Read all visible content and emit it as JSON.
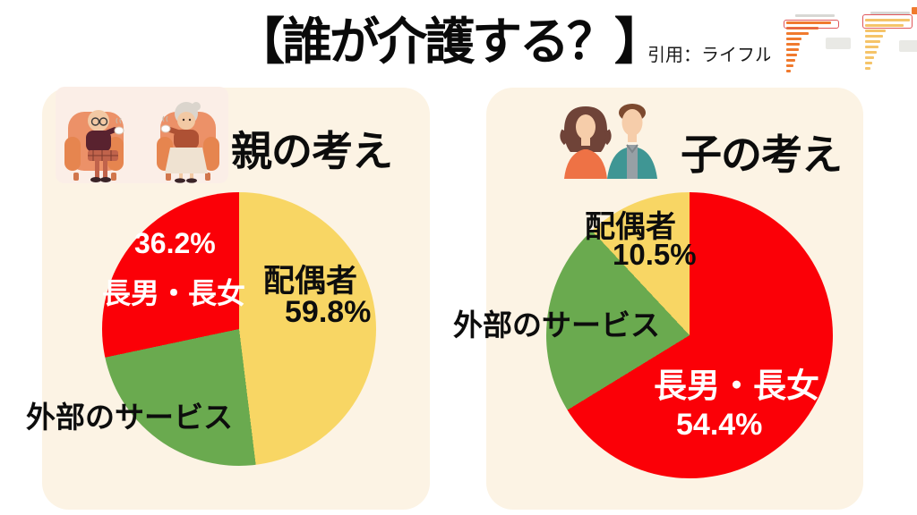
{
  "header": {
    "title": "【誰が介護する？】",
    "citation": "引用：ライフル"
  },
  "thumbnail": {
    "description": "source-bar-charts-thumbnail",
    "bar_color_left": "#f07a2e",
    "bar_color_right": "#f5c469",
    "highlight_color": "#e0565a",
    "bars_left": [
      1.0,
      0.72,
      0.5,
      0.33,
      0.3,
      0.27,
      0.24,
      0.2,
      0.15,
      0.1
    ],
    "bars_right": [
      1.0,
      0.85,
      0.45,
      0.4,
      0.34,
      0.3,
      0.26,
      0.2,
      0.16,
      0.12
    ]
  },
  "colors": {
    "page_bg": "#ffffff",
    "panel_bg": "#fcf3e4",
    "red": "#fb0007",
    "yellow": "#f8d664",
    "green": "#6aaa4f"
  },
  "chart_data": [
    {
      "type": "pie",
      "title": "親の考え",
      "legend_position": "on-slices",
      "note": "percentages as labeled; drawn slice angles measured clockwise from 12 o'clock",
      "slices": [
        {
          "label": "配偶者",
          "value": 59.8,
          "value_label": "59.8%",
          "color": "#f8d664",
          "drawn_angle_deg": [
            0,
            173
          ],
          "text_color": "#0d0d0d"
        },
        {
          "label": "外部のサービス",
          "value_label": "",
          "color": "#6aaa4f",
          "drawn_angle_deg": [
            173,
            258
          ],
          "text_color": "#0d0d0d"
        },
        {
          "label": "長男・長女",
          "value": 36.2,
          "value_label": "36.2%",
          "color": "#fb0007",
          "drawn_angle_deg": [
            258,
            360
          ],
          "text_color": "#ffffff"
        }
      ]
    },
    {
      "type": "pie",
      "title": "子の考え",
      "legend_position": "on-slices",
      "note": "percentages as labeled; drawn slice angles measured clockwise from 12 o'clock",
      "slices": [
        {
          "label": "長男・長女",
          "value": 54.4,
          "value_label": "54.4%",
          "color": "#fb0007",
          "drawn_angle_deg": [
            0,
            238.5
          ],
          "text_color": "#ffffff"
        },
        {
          "label": "外部のサービス",
          "value_label": "",
          "color": "#6aaa4f",
          "drawn_angle_deg": [
            238.5,
            317
          ],
          "text_color": "#0d0d0d"
        },
        {
          "label": "配偶者",
          "value": 10.5,
          "value_label": "10.5%",
          "color": "#f8d664",
          "drawn_angle_deg": [
            317,
            360
          ],
          "text_color": "#0d0d0d"
        }
      ]
    }
  ]
}
